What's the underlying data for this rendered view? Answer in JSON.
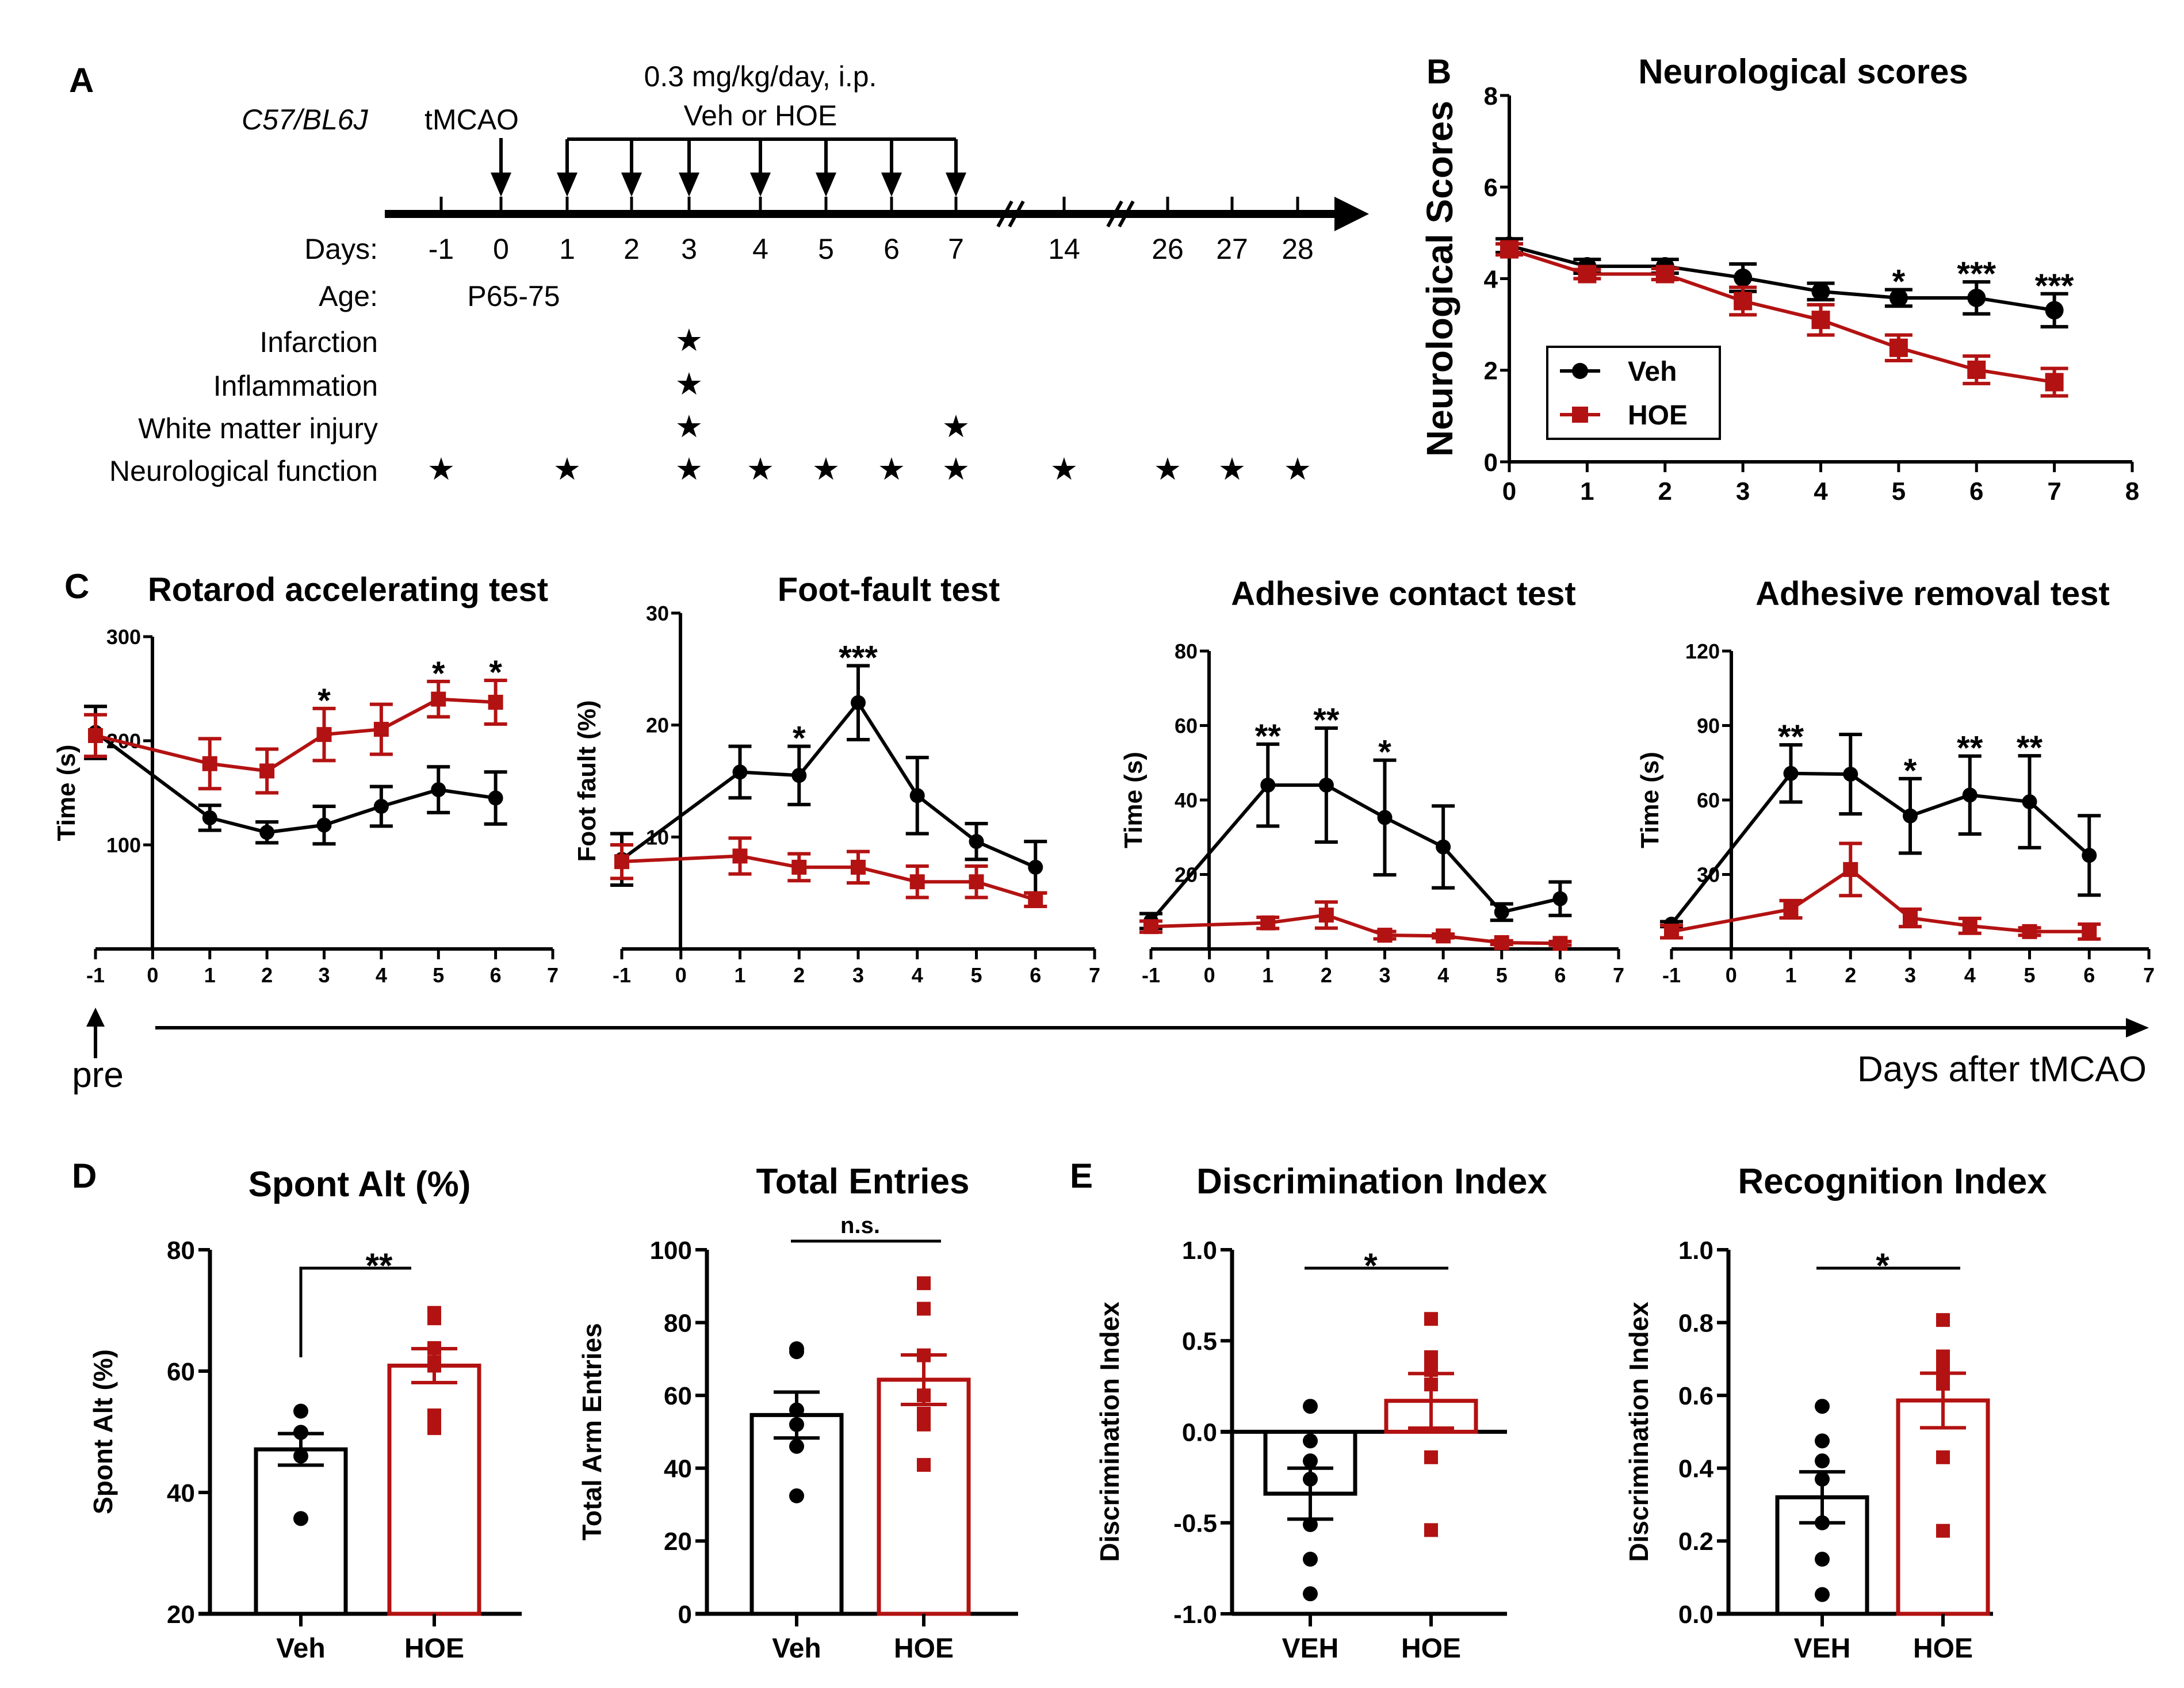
{
  "figure": {
    "colors": {
      "veh": "#000000",
      "hoe": "#b31212"
    },
    "panel_labels": [
      "A",
      "B",
      "C",
      "D",
      "E"
    ]
  },
  "panel_a": {
    "label": "A",
    "strain": "C57/BL6J",
    "surgery": "tMCAO",
    "dose_line1": "0.3 mg/kg/day, i.p.",
    "dose_line2": "Veh or HOE",
    "row_labels": {
      "days": "Days:",
      "age": "Age:"
    },
    "age_value": "P65-75",
    "days": [
      "-1",
      "0",
      "1",
      "2",
      "3",
      "4",
      "5",
      "6",
      "7",
      "14",
      "26",
      "27",
      "28"
    ],
    "treatment_days": [
      "1",
      "2",
      "3",
      "4",
      "5",
      "6",
      "7"
    ],
    "surgery_day": "0",
    "assessments": [
      {
        "name": "Infarction",
        "days": [
          "3"
        ]
      },
      {
        "name": "Inflammation",
        "days": [
          "3"
        ]
      },
      {
        "name": "White matter injury",
        "days": [
          "3",
          "7"
        ]
      },
      {
        "name": "Neurological function",
        "days": [
          "-1",
          "1",
          "3",
          "4",
          "5",
          "6",
          "7",
          "14",
          "26",
          "27",
          "28"
        ]
      }
    ]
  },
  "panel_c": {
    "label": "C",
    "shared_x_label": "Days after tMCAO",
    "pre_label": "pre"
  },
  "panel_d": {
    "label": "D"
  },
  "panel_e": {
    "label": "E"
  },
  "chart_data": [
    {
      "id": "neuro",
      "panel": "B",
      "type": "line",
      "title": "Neurological scores",
      "xlabel": "",
      "ylabel": "Neurological Scores",
      "xlim": [
        0,
        8
      ],
      "ylim": [
        0,
        8
      ],
      "xticks": [
        0,
        1,
        2,
        3,
        4,
        5,
        6,
        7,
        8
      ],
      "yticks": [
        0,
        2,
        4,
        6,
        8
      ],
      "legend": {
        "position": "bottom-left",
        "boxed": true
      },
      "x": [
        0,
        1,
        2,
        3,
        4,
        5,
        6,
        7
      ],
      "series": [
        {
          "name": "Veh",
          "marker": "circle",
          "values": [
            4.72,
            4.27,
            4.27,
            4.02,
            3.72,
            3.58,
            3.58,
            3.31
          ],
          "errors": [
            0.15,
            0.15,
            0.15,
            0.3,
            0.18,
            0.18,
            0.35,
            0.36
          ]
        },
        {
          "name": "HOE",
          "marker": "square",
          "values": [
            4.64,
            4.1,
            4.1,
            3.51,
            3.1,
            2.49,
            2.01,
            1.74
          ],
          "errors": [
            0.12,
            0.1,
            0.12,
            0.3,
            0.33,
            0.28,
            0.3,
            0.3
          ]
        }
      ],
      "significance": [
        {
          "x": 5,
          "label": "*"
        },
        {
          "x": 6,
          "label": "***"
        },
        {
          "x": 7,
          "label": "***"
        }
      ]
    },
    {
      "id": "rotarod",
      "panel": "C",
      "type": "line",
      "title": "Rotarod accelerating test",
      "xlabel": "",
      "ylabel": "Time (s)",
      "xlim": [
        -1,
        7
      ],
      "ylim": [
        0,
        300
      ],
      "xticks": [
        -1,
        0,
        1,
        2,
        3,
        4,
        5,
        6,
        7
      ],
      "yticks": [
        100,
        200,
        300
      ],
      "x": [
        -1,
        1,
        2,
        3,
        4,
        5,
        6
      ],
      "series": [
        {
          "name": "Veh",
          "marker": "circle",
          "values": [
            208,
            126,
            112,
            119,
            137,
            153,
            145
          ],
          "errors": [
            25,
            12,
            10,
            18,
            19,
            22,
            25
          ]
        },
        {
          "name": "HOE",
          "marker": "square",
          "values": [
            205,
            178,
            171,
            206,
            211,
            240,
            237
          ],
          "errors": [
            20,
            24,
            21,
            25,
            24,
            17,
            21
          ]
        }
      ],
      "significance": [
        {
          "x": 3,
          "label": "*"
        },
        {
          "x": 5,
          "label": "*"
        },
        {
          "x": 6,
          "label": "*"
        }
      ]
    },
    {
      "id": "footfault",
      "panel": "C",
      "type": "line",
      "title": "Foot-fault test",
      "xlabel": "",
      "ylabel": "Foot fault (%)",
      "xlim": [
        -1,
        7
      ],
      "ylim": [
        0,
        30
      ],
      "xticks": [
        -1,
        0,
        1,
        2,
        3,
        4,
        5,
        6,
        7
      ],
      "yticks": [
        10,
        20,
        30
      ],
      "x": [
        -1,
        1,
        2,
        3,
        4,
        5,
        6
      ],
      "series": [
        {
          "name": "Veh",
          "marker": "circle",
          "values": [
            8.0,
            15.8,
            15.5,
            22.0,
            13.7,
            9.6,
            7.3
          ],
          "errors": [
            2.3,
            2.3,
            2.6,
            3.3,
            3.4,
            1.6,
            2.3
          ]
        },
        {
          "name": "HOE",
          "marker": "square",
          "values": [
            7.8,
            8.3,
            7.3,
            7.3,
            6.0,
            6.0,
            4.4
          ],
          "errors": [
            1.5,
            1.6,
            1.2,
            1.4,
            1.4,
            1.4,
            0.6
          ]
        }
      ],
      "significance": [
        {
          "x": 2,
          "label": "*"
        },
        {
          "x": 3,
          "label": "***"
        }
      ]
    },
    {
      "id": "contact",
      "panel": "C",
      "type": "line",
      "title": "Adhesive contact test",
      "xlabel": "",
      "ylabel": "Time (s)",
      "xlim": [
        -1,
        7
      ],
      "ylim": [
        0,
        80
      ],
      "xticks": [
        -1,
        0,
        1,
        2,
        3,
        4,
        5,
        6,
        7
      ],
      "yticks": [
        20,
        40,
        60,
        80
      ],
      "x": [
        -1,
        1,
        2,
        3,
        4,
        5,
        6
      ],
      "series": [
        {
          "name": "Veh",
          "marker": "circle",
          "values": [
            7.5,
            44,
            44,
            35.3,
            27.4,
            9.9,
            13.5
          ],
          "errors": [
            2,
            11,
            15.3,
            15.4,
            11,
            2.2,
            4.5
          ]
        },
        {
          "name": "HOE",
          "marker": "square",
          "values": [
            6.0,
            7.0,
            9.1,
            3.7,
            3.5,
            1.7,
            1.5
          ],
          "errors": [
            1.5,
            1.5,
            3.5,
            1,
            0.5,
            0.5,
            0.5
          ]
        }
      ],
      "significance": [
        {
          "x": 1,
          "label": "**"
        },
        {
          "x": 2,
          "label": "**"
        },
        {
          "x": 3,
          "label": "*"
        }
      ]
    },
    {
      "id": "removal",
      "panel": "C",
      "type": "line",
      "title": "Adhesive removal test",
      "xlabel": "",
      "ylabel": "Time (s)",
      "xlim": [
        -1,
        7
      ],
      "ylim": [
        0,
        120
      ],
      "xticks": [
        -1,
        0,
        1,
        2,
        3,
        4,
        5,
        6,
        7
      ],
      "yticks": [
        30,
        60,
        90,
        120
      ],
      "x": [
        -1,
        1,
        2,
        3,
        4,
        5,
        6
      ],
      "series": [
        {
          "name": "Veh",
          "marker": "circle",
          "values": [
            10,
            70.7,
            70.4,
            53.6,
            62,
            59.3,
            37.7
          ],
          "errors": [
            1,
            11.5,
            16,
            15,
            15.7,
            18.5,
            16
          ]
        },
        {
          "name": "HOE",
          "marker": "square",
          "values": [
            7,
            16,
            32,
            12.5,
            9.3,
            7,
            7
          ],
          "errors": [
            2.5,
            3.5,
            10.5,
            3.5,
            3,
            1.5,
            3
          ]
        }
      ],
      "significance": [
        {
          "x": 1,
          "label": "**"
        },
        {
          "x": 3,
          "label": "*"
        },
        {
          "x": 4,
          "label": "**"
        },
        {
          "x": 5,
          "label": "**"
        }
      ]
    },
    {
      "id": "spontalt",
      "panel": "D",
      "type": "bar",
      "title": "Spont Alt (%)",
      "xlabel": "",
      "ylabel": "Spont Alt (%)",
      "ylim": [
        20,
        80
      ],
      "yticks": [
        20,
        40,
        60,
        80
      ],
      "categories": [
        "Veh",
        "HOE"
      ],
      "values": [
        47.1,
        60.9
      ],
      "errors": [
        2.6,
        2.8
      ],
      "points": [
        [
          53.4,
          49.9,
          49.9,
          49.9,
          46.0,
          35.7
        ],
        [
          69.6,
          68.7,
          63.8,
          61.5,
          60.9,
          52.7,
          50.6
        ]
      ],
      "significance": {
        "label": "**",
        "bracket": true
      }
    },
    {
      "id": "entries",
      "panel": "D",
      "type": "bar",
      "title": "Total Entries",
      "xlabel": "",
      "ylabel": "Total Arm Entries",
      "ylim": [
        0,
        100
      ],
      "yticks": [
        0,
        20,
        40,
        60,
        80,
        100
      ],
      "categories": [
        "Veh",
        "HOE"
      ],
      "values": [
        54.6,
        64.3
      ],
      "errors": [
        6.3,
        6.8
      ],
      "points": [
        [
          72.8,
          72,
          56,
          52,
          46,
          32.4
        ],
        [
          90.8,
          83.8,
          71,
          60,
          55,
          52,
          40.9
        ]
      ],
      "significance": {
        "label": "n.s.",
        "bracket": false
      }
    },
    {
      "id": "discrimination",
      "panel": "E",
      "type": "bar",
      "title": "Discrimination Index",
      "xlabel": "",
      "ylabel": "Discrimination Index",
      "ylim": [
        -1.0,
        1.0
      ],
      "yticks": [
        -1.0,
        -0.5,
        0.0,
        0.5,
        1.0
      ],
      "categories": [
        "VEH",
        "HOE"
      ],
      "values": [
        -0.34,
        0.17
      ],
      "errors": [
        0.14,
        0.15
      ],
      "points": [
        [
          0.14,
          -0.05,
          -0.16,
          -0.26,
          -0.51,
          -0.7,
          -0.89
        ],
        [
          0.62,
          0.41,
          0.34,
          0.34,
          0.26,
          -0.14,
          -0.54
        ]
      ],
      "significance": {
        "label": "*",
        "bracket": false
      }
    },
    {
      "id": "recognition",
      "panel": "E",
      "type": "bar",
      "title": "Recognition Index",
      "xlabel": "",
      "ylabel": "Discrimination Index",
      "ylim": [
        0.0,
        1.0
      ],
      "yticks": [
        0.0,
        0.2,
        0.4,
        0.6,
        0.8,
        1.0
      ],
      "categories": [
        "VEH",
        "HOE"
      ],
      "values": [
        0.32,
        0.586
      ],
      "errors": [
        0.07,
        0.075
      ],
      "points": [
        [
          0.57,
          0.475,
          0.42,
          0.37,
          0.25,
          0.15,
          0.053
        ],
        [
          0.807,
          0.707,
          0.67,
          0.67,
          0.632,
          0.43,
          0.228
        ]
      ],
      "significance": {
        "label": "*",
        "bracket": false
      }
    }
  ]
}
